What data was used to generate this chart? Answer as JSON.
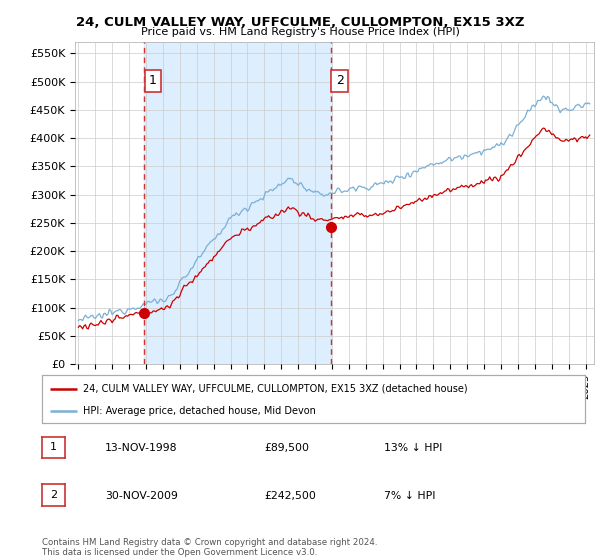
{
  "title_line1": "24, CULM VALLEY WAY, UFFCULME, CULLOMPTON, EX15 3XZ",
  "title_line2": "Price paid vs. HM Land Registry's House Price Index (HPI)",
  "ylabel_ticks": [
    "£0",
    "£50K",
    "£100K",
    "£150K",
    "£200K",
    "£250K",
    "£300K",
    "£350K",
    "£400K",
    "£450K",
    "£500K",
    "£550K"
  ],
  "ytick_values": [
    0,
    50000,
    100000,
    150000,
    200000,
    250000,
    300000,
    350000,
    400000,
    450000,
    500000,
    550000
  ],
  "ylim": [
    0,
    570000
  ],
  "xlim_start": 1994.8,
  "xlim_end": 2025.5,
  "sale1_x": 1998.87,
  "sale1_y": 89500,
  "sale1_label": "1",
  "sale2_x": 2009.92,
  "sale2_y": 242500,
  "sale2_label": "2",
  "hpi_color": "#7ab0d4",
  "price_color": "#cc0000",
  "vline_color": "#cc3333",
  "shade_color": "#ddeeff",
  "legend_line1": "24, CULM VALLEY WAY, UFFCULME, CULLOMPTON, EX15 3XZ (detached house)",
  "legend_line2": "HPI: Average price, detached house, Mid Devon",
  "table_row1": [
    "1",
    "13-NOV-1998",
    "£89,500",
    "13% ↓ HPI"
  ],
  "table_row2": [
    "2",
    "30-NOV-2009",
    "£242,500",
    "7% ↓ HPI"
  ],
  "footnote": "Contains HM Land Registry data © Crown copyright and database right 2024.\nThis data is licensed under the Open Government Licence v3.0.",
  "background_color": "#ffffff",
  "grid_color": "#cccccc"
}
